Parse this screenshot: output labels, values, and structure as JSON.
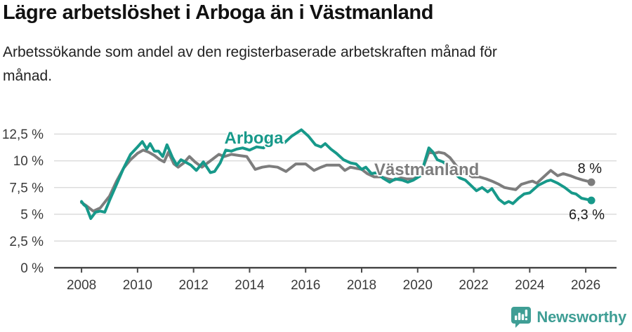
{
  "header": {
    "title": "Lägre arbetslöshet i Arboga än i Västmanland",
    "subtitle": "Arbetssökande som andel av den registerbaserade arbetskraften månad för månad."
  },
  "colors": {
    "accent_teal": "#17998a",
    "series_gray": "#7d7d7d",
    "grid": "#dcdcdc",
    "axis": "#4a4a4a",
    "tick_text": "#3a3a3a",
    "end_label_text": "#1a1a1a",
    "logo_teal": "#3f9e95"
  },
  "chart_data": {
    "type": "line",
    "title": "Lägre arbetslöshet i Arboga än i Västmanland",
    "subtitle": "Arbetssökande som andel av den registerbaserade arbetskraften månad för månad.",
    "unit": "%",
    "xlabel": "",
    "ylabel": "",
    "grid": "horizontal",
    "legend_position": "inline-labels",
    "ylim": [
      0,
      13.9
    ],
    "yticks": {
      "values": [
        0,
        2.5,
        5,
        7.5,
        10,
        12.5
      ],
      "labels": [
        "0 %",
        "2,5 %",
        "5 %",
        "7,5 %",
        "10 %",
        "12,5 %"
      ]
    },
    "xticks": {
      "values": [
        2008,
        2010,
        2012,
        2014,
        2016,
        2018,
        2020,
        2022,
        2024,
        2026
      ],
      "labels": [
        "2008",
        "2010",
        "2012",
        "2014",
        "2016",
        "2018",
        "2020",
        "2022",
        "2024",
        "2026"
      ]
    },
    "series": [
      {
        "name": "Arboga",
        "color": "#17998a",
        "end_label": "6,3 %",
        "end_value": 6.3,
        "label_pos": {
          "x": 2013.1,
          "y": 12.15
        },
        "points": [
          [
            2008.0,
            6.2
          ],
          [
            2008.08,
            5.9
          ],
          [
            2008.17,
            5.7
          ],
          [
            2008.33,
            4.6
          ],
          [
            2008.5,
            5.2
          ],
          [
            2008.67,
            5.3
          ],
          [
            2008.83,
            5.2
          ],
          [
            2009.0,
            6.3
          ],
          [
            2009.25,
            7.8
          ],
          [
            2009.5,
            9.3
          ],
          [
            2009.75,
            10.6
          ],
          [
            2010.0,
            11.3
          ],
          [
            2010.17,
            11.8
          ],
          [
            2010.33,
            11.1
          ],
          [
            2010.45,
            11.6
          ],
          [
            2010.6,
            10.9
          ],
          [
            2010.75,
            10.9
          ],
          [
            2010.9,
            10.4
          ],
          [
            2011.05,
            11.5
          ],
          [
            2011.25,
            10.3
          ],
          [
            2011.4,
            9.6
          ],
          [
            2011.55,
            10.1
          ],
          [
            2011.7,
            9.9
          ],
          [
            2011.9,
            9.6
          ],
          [
            2012.1,
            9.1
          ],
          [
            2012.35,
            9.9
          ],
          [
            2012.6,
            8.9
          ],
          [
            2012.75,
            9.0
          ],
          [
            2012.95,
            9.8
          ],
          [
            2013.15,
            11.0
          ],
          [
            2013.35,
            10.9
          ],
          [
            2013.55,
            11.1
          ],
          [
            2013.75,
            11.2
          ],
          [
            2014.0,
            11.0
          ],
          [
            2014.25,
            11.3
          ],
          [
            2014.5,
            11.2
          ],
          [
            2014.75,
            12.0
          ],
          [
            2015.0,
            11.8
          ],
          [
            2015.25,
            11.7
          ],
          [
            2015.5,
            12.3
          ],
          [
            2015.85,
            12.9
          ],
          [
            2016.1,
            12.3
          ],
          [
            2016.35,
            11.5
          ],
          [
            2016.55,
            11.3
          ],
          [
            2016.7,
            11.6
          ],
          [
            2016.9,
            11.1
          ],
          [
            2017.1,
            10.7
          ],
          [
            2017.35,
            10.1
          ],
          [
            2017.6,
            9.8
          ],
          [
            2017.8,
            9.7
          ],
          [
            2018.0,
            9.2
          ],
          [
            2018.15,
            9.4
          ],
          [
            2018.35,
            8.8
          ],
          [
            2018.55,
            8.9
          ],
          [
            2018.75,
            8.4
          ],
          [
            2019.0,
            8.0
          ],
          [
            2019.2,
            8.3
          ],
          [
            2019.45,
            8.2
          ],
          [
            2019.65,
            8.0
          ],
          [
            2019.85,
            8.2
          ],
          [
            2020.1,
            8.6
          ],
          [
            2020.4,
            11.2
          ],
          [
            2020.55,
            10.8
          ],
          [
            2020.7,
            10.1
          ],
          [
            2020.9,
            9.9
          ],
          [
            2021.1,
            9.5
          ],
          [
            2021.3,
            8.9
          ],
          [
            2021.5,
            8.4
          ],
          [
            2021.7,
            8.2
          ],
          [
            2021.9,
            7.7
          ],
          [
            2022.1,
            7.2
          ],
          [
            2022.3,
            7.5
          ],
          [
            2022.5,
            7.1
          ],
          [
            2022.65,
            7.4
          ],
          [
            2022.9,
            6.4
          ],
          [
            2023.1,
            6.0
          ],
          [
            2023.25,
            6.2
          ],
          [
            2023.4,
            6.0
          ],
          [
            2023.6,
            6.5
          ],
          [
            2023.8,
            6.9
          ],
          [
            2024.0,
            7.0
          ],
          [
            2024.3,
            7.7
          ],
          [
            2024.6,
            8.1
          ],
          [
            2024.75,
            8.2
          ],
          [
            2025.0,
            7.9
          ],
          [
            2025.25,
            7.5
          ],
          [
            2025.5,
            7.0
          ],
          [
            2025.65,
            6.9
          ],
          [
            2025.85,
            6.5
          ],
          [
            2026.2,
            6.3
          ]
        ]
      },
      {
        "name": "Västmanland",
        "color": "#7d7d7d",
        "end_label": "8 %",
        "end_value": 8.0,
        "label_pos": {
          "x": 2018.45,
          "y": 9.2
        },
        "points": [
          [
            2008.0,
            6.1
          ],
          [
            2008.17,
            5.8
          ],
          [
            2008.42,
            5.3
          ],
          [
            2008.67,
            5.6
          ],
          [
            2009.0,
            6.7
          ],
          [
            2009.25,
            8.1
          ],
          [
            2009.5,
            9.3
          ],
          [
            2009.75,
            10.1
          ],
          [
            2010.0,
            10.7
          ],
          [
            2010.2,
            11.0
          ],
          [
            2010.4,
            10.8
          ],
          [
            2010.6,
            10.5
          ],
          [
            2010.8,
            10.1
          ],
          [
            2010.95,
            9.9
          ],
          [
            2011.1,
            10.8
          ],
          [
            2011.3,
            9.7
          ],
          [
            2011.45,
            9.4
          ],
          [
            2011.65,
            9.8
          ],
          [
            2011.85,
            10.4
          ],
          [
            2012.05,
            9.9
          ],
          [
            2012.3,
            9.4
          ],
          [
            2012.6,
            10.0
          ],
          [
            2012.9,
            10.6
          ],
          [
            2013.1,
            10.4
          ],
          [
            2013.35,
            10.6
          ],
          [
            2013.6,
            10.5
          ],
          [
            2013.9,
            10.4
          ],
          [
            2014.2,
            9.2
          ],
          [
            2014.45,
            9.4
          ],
          [
            2014.7,
            9.5
          ],
          [
            2015.0,
            9.4
          ],
          [
            2015.3,
            9.0
          ],
          [
            2015.65,
            9.7
          ],
          [
            2016.0,
            9.7
          ],
          [
            2016.3,
            9.1
          ],
          [
            2016.55,
            9.4
          ],
          [
            2016.75,
            9.6
          ],
          [
            2017.0,
            9.6
          ],
          [
            2017.2,
            9.6
          ],
          [
            2017.4,
            9.1
          ],
          [
            2017.6,
            9.4
          ],
          [
            2017.8,
            9.3
          ],
          [
            2018.0,
            9.2
          ],
          [
            2018.2,
            8.8
          ],
          [
            2018.45,
            8.5
          ],
          [
            2018.7,
            8.5
          ],
          [
            2018.95,
            8.3
          ],
          [
            2019.15,
            8.2
          ],
          [
            2019.4,
            8.4
          ],
          [
            2019.6,
            8.3
          ],
          [
            2019.85,
            8.3
          ],
          [
            2020.1,
            8.7
          ],
          [
            2020.4,
            10.8
          ],
          [
            2020.6,
            10.7
          ],
          [
            2020.75,
            10.8
          ],
          [
            2020.95,
            10.7
          ],
          [
            2021.15,
            10.3
          ],
          [
            2021.45,
            9.3
          ],
          [
            2021.7,
            8.9
          ],
          [
            2021.95,
            8.5
          ],
          [
            2022.2,
            8.5
          ],
          [
            2022.45,
            8.3
          ],
          [
            2022.65,
            8.1
          ],
          [
            2022.9,
            7.8
          ],
          [
            2023.1,
            7.5
          ],
          [
            2023.3,
            7.4
          ],
          [
            2023.5,
            7.3
          ],
          [
            2023.7,
            7.8
          ],
          [
            2023.95,
            8.0
          ],
          [
            2024.1,
            8.1
          ],
          [
            2024.25,
            7.9
          ],
          [
            2024.5,
            8.5
          ],
          [
            2024.75,
            9.1
          ],
          [
            2025.0,
            8.6
          ],
          [
            2025.2,
            8.8
          ],
          [
            2025.45,
            8.6
          ],
          [
            2025.65,
            8.4
          ],
          [
            2025.9,
            8.2
          ],
          [
            2026.2,
            8.0
          ]
        ]
      }
    ]
  },
  "footer": {
    "brand": "Newsworthy",
    "logo_icon": "newsworthy-chart-bubble-icon"
  }
}
